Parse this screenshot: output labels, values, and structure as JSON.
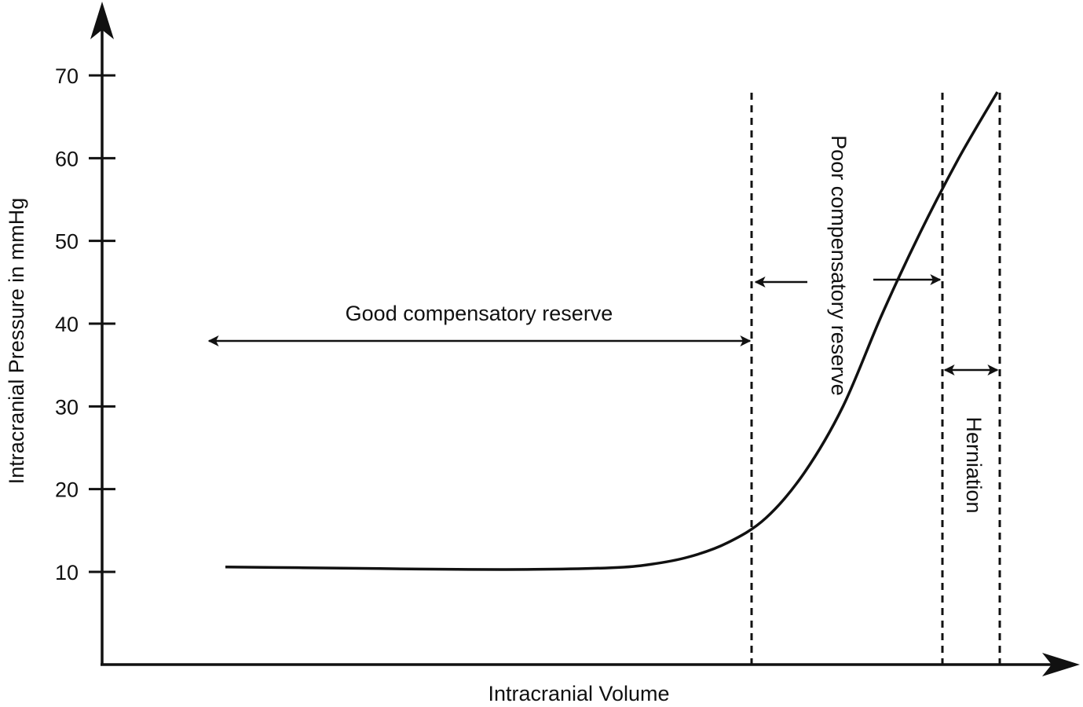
{
  "chart_data": {
    "type": "line",
    "title": "",
    "xlabel": "Intracranial Volume",
    "ylabel": "Intracranial Pressure in mmHg",
    "yticks": [
      10,
      20,
      30,
      40,
      50,
      60,
      70
    ],
    "xticks": [],
    "grid": false,
    "series": [
      {
        "x": [
          0.0,
          0.1,
          0.2,
          0.3,
          0.4,
          0.5,
          0.55,
          0.6,
          0.65,
          0.7,
          0.75,
          0.8,
          0.85,
          0.9,
          0.95,
          1.0
        ],
        "y": [
          10.6,
          10.5,
          10.4,
          10.3,
          10.3,
          10.5,
          10.9,
          11.8,
          13.5,
          16.5,
          22.0,
          30.0,
          41.0,
          51.0,
          60.0,
          68.0
        ]
      }
    ],
    "regions": [
      {
        "label": "Good compensatory reserve",
        "orientation": "horizontal"
      },
      {
        "label": "Poor compensatory reserve",
        "orientation": "vertical"
      },
      {
        "label": "Herniation",
        "orientation": "vertical"
      }
    ]
  }
}
